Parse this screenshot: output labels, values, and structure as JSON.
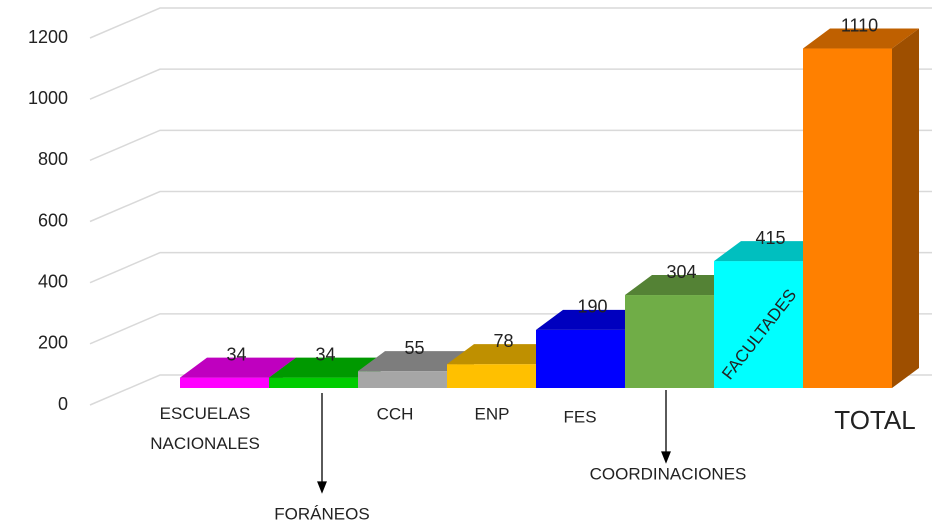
{
  "chart_data": {
    "type": "bar3d",
    "categories": [
      "ESCUELAS NACIONALES",
      "FORÁNEOS",
      "CCH",
      "ENP",
      "FES",
      "COORDINACIONES",
      "FACULTADES",
      "TOTAL"
    ],
    "values": [
      34,
      34,
      55,
      78,
      190,
      304,
      415,
      1110
    ],
    "colors": [
      "#ff00ff",
      "#00cc00",
      "#a6a6a6",
      "#ffc000",
      "#0000ff",
      "#70ad47",
      "#00ffff",
      "#ff8000"
    ],
    "ylim": [
      0,
      1200
    ],
    "yticks": [
      0,
      200,
      400,
      600,
      800,
      1000,
      1200
    ],
    "grid": true
  }
}
